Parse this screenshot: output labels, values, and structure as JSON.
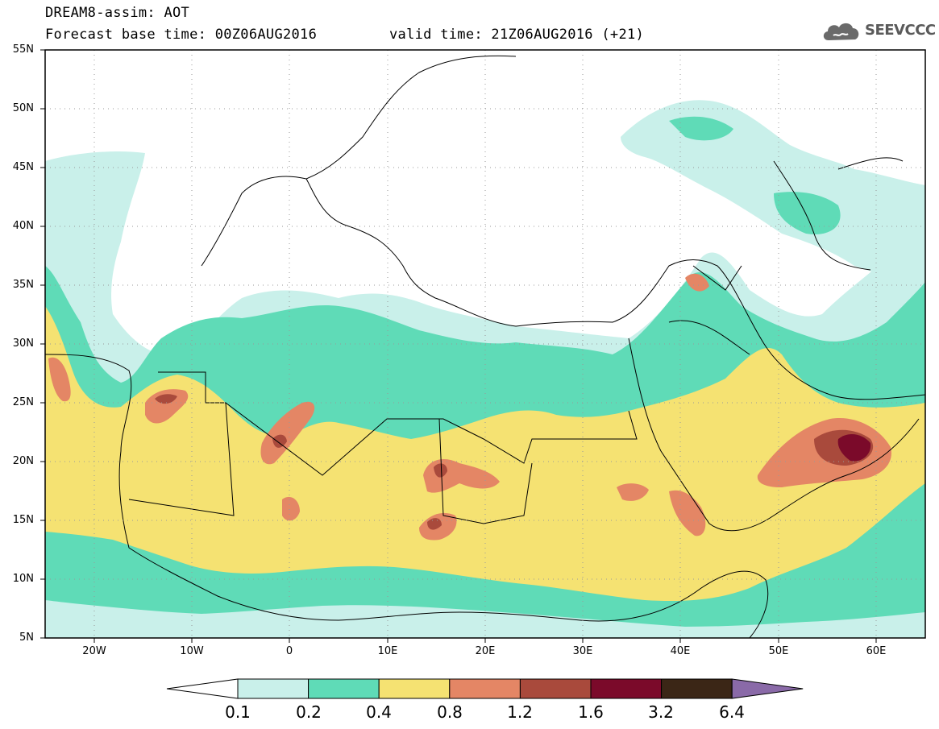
{
  "header": {
    "title": "DREAM8-assim: AOT",
    "base_time": "Forecast base time: 00Z06AUG2016",
    "valid_time": "valid time: 21Z06AUG2016 (+21)"
  },
  "logo": {
    "text": "SEEVCCC",
    "icon": "cloud-icon"
  },
  "map": {
    "lat_ticks": [
      "55N",
      "50N",
      "45N",
      "40N",
      "35N",
      "30N",
      "25N",
      "20N",
      "15N",
      "10N",
      "5N"
    ],
    "lon_ticks": [
      "20W",
      "10W",
      "0",
      "10E",
      "20E",
      "30E",
      "40E",
      "50E",
      "60E"
    ],
    "extent": {
      "lon": [
        -25,
        65
      ],
      "lat": [
        5,
        55
      ]
    },
    "grid": "dotted"
  },
  "colorbar": {
    "labels": [
      "0.1",
      "0.2",
      "0.4",
      "0.8",
      "1.2",
      "1.6",
      "3.2",
      "6.4"
    ],
    "colors": [
      "#c9f0ea",
      "#5fdbb7",
      "#f5e272",
      "#e48665",
      "#a94a3c",
      "#7b0a2a",
      "#3b2616",
      "#8a6aa8"
    ],
    "under_color": "#ffffff"
  }
}
